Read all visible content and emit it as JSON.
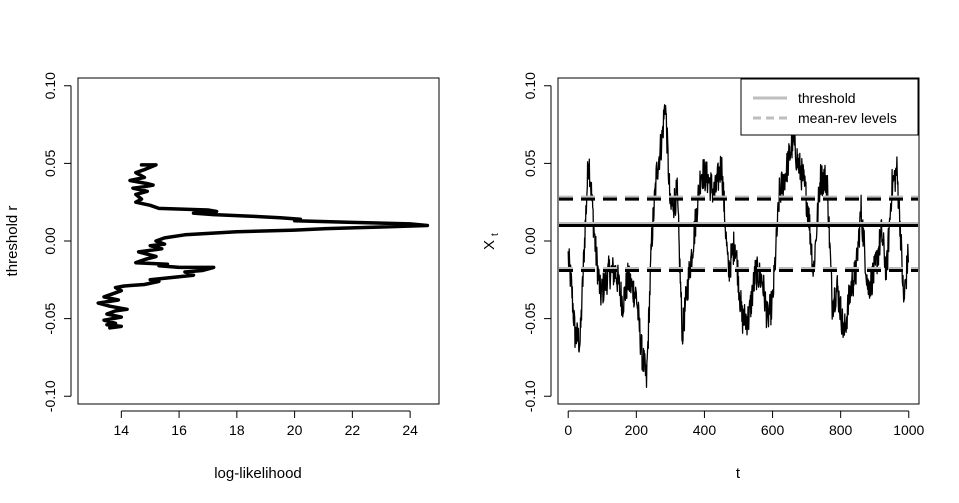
{
  "chart_data": [
    {
      "type": "line",
      "xlabel": "log-likelihood",
      "ylabel": "threshold r",
      "xlim": [
        12.5,
        25.0
      ],
      "ylim": [
        -0.105,
        0.105
      ],
      "x_ticks": [
        14,
        16,
        18,
        20,
        22,
        24
      ],
      "y_ticks": [
        -0.1,
        -0.05,
        0.0,
        0.05,
        0.1
      ],
      "x_tick_labels": [
        "14",
        "16",
        "18",
        "20",
        "22",
        "24"
      ],
      "y_tick_labels": [
        "-0.10",
        "-0.05",
        "0.00",
        "0.05",
        "0.10"
      ],
      "series": [
        {
          "points": [
            [
              14.7,
              0.049
            ],
            [
              15.2,
              0.049
            ],
            [
              14.8,
              0.046
            ],
            [
              14.5,
              0.044
            ],
            [
              14.8,
              0.041
            ],
            [
              14.3,
              0.039
            ],
            [
              14.9,
              0.037
            ],
            [
              15.1,
              0.036
            ],
            [
              14.8,
              0.035
            ],
            [
              14.4,
              0.034
            ],
            [
              14.9,
              0.032
            ],
            [
              14.5,
              0.03
            ],
            [
              14.7,
              0.027
            ],
            [
              14.5,
              0.025
            ],
            [
              15.0,
              0.023
            ],
            [
              15.3,
              0.021
            ],
            [
              17.0,
              0.02
            ],
            [
              17.3,
              0.019
            ],
            [
              16.5,
              0.018
            ],
            [
              17.2,
              0.017
            ],
            [
              18.5,
              0.016
            ],
            [
              19.5,
              0.015
            ],
            [
              20.2,
              0.014
            ],
            [
              20.0,
              0.013
            ],
            [
              22.0,
              0.012
            ],
            [
              24.0,
              0.011
            ],
            [
              24.6,
              0.01
            ],
            [
              23.0,
              0.009
            ],
            [
              21.1,
              0.008
            ],
            [
              20.0,
              0.007
            ],
            [
              18.0,
              0.006
            ],
            [
              16.2,
              0.004
            ],
            [
              15.5,
              0.002
            ],
            [
              15.2,
              0.0
            ],
            [
              15.5,
              -0.002
            ],
            [
              15.0,
              -0.003
            ],
            [
              15.4,
              -0.005
            ],
            [
              14.6,
              -0.007
            ],
            [
              15.2,
              -0.01
            ],
            [
              14.8,
              -0.012
            ],
            [
              14.5,
              -0.014
            ],
            [
              15.6,
              -0.015
            ],
            [
              15.3,
              -0.016
            ],
            [
              16.0,
              -0.017
            ],
            [
              17.2,
              -0.017
            ],
            [
              16.8,
              -0.019
            ],
            [
              16.2,
              -0.02
            ],
            [
              16.5,
              -0.022
            ],
            [
              15.5,
              -0.024
            ],
            [
              15.0,
              -0.025
            ],
            [
              15.3,
              -0.026
            ],
            [
              14.8,
              -0.028
            ],
            [
              14.1,
              -0.029
            ],
            [
              13.8,
              -0.03
            ],
            [
              14.0,
              -0.032
            ],
            [
              13.7,
              -0.034
            ],
            [
              13.4,
              -0.036
            ],
            [
              13.9,
              -0.038
            ],
            [
              13.2,
              -0.04
            ],
            [
              13.6,
              -0.042
            ],
            [
              14.2,
              -0.044
            ],
            [
              13.8,
              -0.045
            ],
            [
              13.5,
              -0.047
            ],
            [
              14.0,
              -0.049
            ],
            [
              13.4,
              -0.051
            ],
            [
              13.8,
              -0.053
            ],
            [
              13.5,
              -0.054
            ],
            [
              14.0,
              -0.055
            ],
            [
              13.6,
              -0.056
            ]
          ]
        }
      ]
    },
    {
      "type": "line",
      "xlabel": "t",
      "ylabel_main": "X",
      "ylabel_sub": "t",
      "xlim": [
        -30,
        1030
      ],
      "ylim": [
        -0.105,
        0.105
      ],
      "x_ticks": [
        0,
        200,
        400,
        600,
        800,
        1000
      ],
      "y_ticks": [
        -0.1,
        -0.05,
        0.0,
        0.05,
        0.1
      ],
      "x_tick_labels": [
        "0",
        "200",
        "400",
        "600",
        "800",
        "1000"
      ],
      "y_tick_labels": [
        "-0.10",
        "-0.05",
        "0.00",
        "0.05",
        "0.10"
      ],
      "n_points": 1000,
      "threshold": 0.01,
      "mean_rev_levels": [
        0.027,
        -0.019
      ],
      "series_anchors": [
        [
          0,
          -0.01
        ],
        [
          10,
          -0.03
        ],
        [
          20,
          -0.06
        ],
        [
          35,
          -0.065
        ],
        [
          48,
          0.0
        ],
        [
          60,
          0.055
        ],
        [
          80,
          -0.005
        ],
        [
          95,
          -0.035
        ],
        [
          120,
          -0.02
        ],
        [
          140,
          -0.02
        ],
        [
          160,
          -0.04
        ],
        [
          175,
          -0.025
        ],
        [
          200,
          -0.035
        ],
        [
          215,
          -0.07
        ],
        [
          230,
          -0.09
        ],
        [
          245,
          0.0
        ],
        [
          260,
          0.045
        ],
        [
          275,
          0.065
        ],
        [
          285,
          0.09
        ],
        [
          300,
          0.02
        ],
        [
          320,
          0.03
        ],
        [
          335,
          -0.06
        ],
        [
          350,
          -0.03
        ],
        [
          370,
          0.005
        ],
        [
          390,
          0.045
        ],
        [
          410,
          0.04
        ],
        [
          430,
          0.03
        ],
        [
          450,
          0.05
        ],
        [
          470,
          -0.02
        ],
        [
          490,
          0.0
        ],
        [
          510,
          -0.05
        ],
        [
          530,
          -0.05
        ],
        [
          550,
          -0.02
        ],
        [
          570,
          -0.025
        ],
        [
          585,
          -0.05
        ],
        [
          600,
          -0.04
        ],
        [
          620,
          0.03
        ],
        [
          640,
          0.045
        ],
        [
          660,
          0.065
        ],
        [
          675,
          0.05
        ],
        [
          690,
          0.04
        ],
        [
          705,
          0.02
        ],
        [
          720,
          -0.02
        ],
        [
          740,
          0.04
        ],
        [
          760,
          0.04
        ],
        [
          775,
          -0.04
        ],
        [
          790,
          -0.03
        ],
        [
          810,
          -0.06
        ],
        [
          830,
          -0.03
        ],
        [
          845,
          -0.02
        ],
        [
          860,
          0.02
        ],
        [
          880,
          -0.03
        ],
        [
          900,
          -0.02
        ],
        [
          920,
          0.005
        ],
        [
          935,
          -0.02
        ],
        [
          950,
          0.035
        ],
        [
          965,
          0.045
        ],
        [
          975,
          0.01
        ],
        [
          985,
          -0.04
        ],
        [
          1000,
          -0.005
        ]
      ],
      "legend": {
        "position": "top-right",
        "entries": [
          {
            "label": "threshold",
            "color": "#bebebe",
            "style": "solid"
          },
          {
            "label": "mean-rev levels",
            "color": "#bebebe",
            "style": "dashed"
          }
        ]
      }
    }
  ]
}
